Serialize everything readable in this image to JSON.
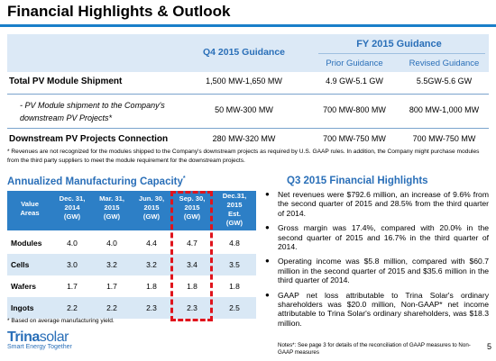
{
  "title": "Financial Highlights & Outlook",
  "guidance": {
    "q4_header": "Q4 2015 Guidance",
    "fy_header": "FY 2015 Guidance",
    "prior_header": "Prior Guidance",
    "revised_header": "Revised Guidance",
    "rows": [
      {
        "label": "Total PV Module Shipment",
        "q4": "1,500 MW-1,650 MW",
        "prior": "4.9 GW-5.1 GW",
        "revised": "5.5GW-5.6 GW"
      },
      {
        "label": "- PV Module shipment to the Company's downstream PV Projects*",
        "q4": "50 MW-300 MW",
        "prior": "700 MW-800 MW",
        "revised": "800 MW-1,000 MW"
      },
      {
        "label": "Downstream PV Projects Connection",
        "q4": "280 MW-320 MW",
        "prior": "700 MW-750 MW",
        "revised": "700 MW-750 MW"
      }
    ],
    "footnote": "* Revenues are not recognized for the modules shipped to the Company's downstream projects as required by U.S. GAAP rules. In addition, the Company might purchase modules from the third party suppliers to meet the module  requirement for the downstream projects."
  },
  "capacity": {
    "title": "Annualized Manufacturing Capacity",
    "title_mark": "*",
    "headers": [
      [
        "Value",
        "Areas"
      ],
      [
        "Dec. 31,",
        "2014",
        "(GW)"
      ],
      [
        "Mar. 31,",
        "2015",
        "(GW)"
      ],
      [
        "Jun. 30,",
        "2015",
        "(GW)"
      ],
      [
        "Sep. 30,",
        "2015",
        "(GW)"
      ],
      [
        "Dec.31,",
        "2015",
        "Est.",
        "(GW)"
      ]
    ],
    "rows": [
      {
        "label": "Modules",
        "values": [
          "4.0",
          "4.0",
          "4.4",
          "4.7",
          "4.8"
        ]
      },
      {
        "label": "Cells",
        "values": [
          "3.0",
          "3.2",
          "3.2",
          "3.4",
          "3.5"
        ]
      },
      {
        "label": "Wafers",
        "values": [
          "1.7",
          "1.7",
          "1.8",
          "1.8",
          "1.8"
        ]
      },
      {
        "label": "Ingots",
        "values": [
          "2.2",
          "2.2",
          "2.3",
          "2.3",
          "2.5"
        ]
      }
    ],
    "highlight_color": "#e0141c",
    "footnote": "* Based on average manufacturing yield."
  },
  "q3": {
    "title": "Q3 2015 Financial Highlights",
    "bullets": [
      "Net revenues were $792.6 million, an increase of 9.6% from the second quarter of 2015 and 28.5% from the  third quarter of 2014.",
      "Gross margin was 17.4%, compared with 20.0% in the second quarter of 2015 and 16.7% in the third quarter of 2014.",
      "Operating income was $5.8 million, compared with $60.7 million in the second quarter of 2015 and $35.6 million in the third quarter of 2014.",
      "GAAP net loss attributable to Trina Solar's ordinary shareholders was $20.0 million, Non-GAAP* net income attributable to Trina Solar's ordinary shareholders, was $18.3 million."
    ],
    "notes": "Notes*: See  page 3 for details of the reconciliation of GAAP measures to Non-GAAP measures"
  },
  "logo": {
    "brand_bold": "Trina",
    "brand_light": "solar",
    "tagline": "Smart Energy Together"
  },
  "page_number": "5",
  "colors": {
    "accent": "#2a6fb8",
    "header_band": "#dce9f6",
    "table_head": "#2d7fc6",
    "row_shade": "#d9e8f5"
  }
}
